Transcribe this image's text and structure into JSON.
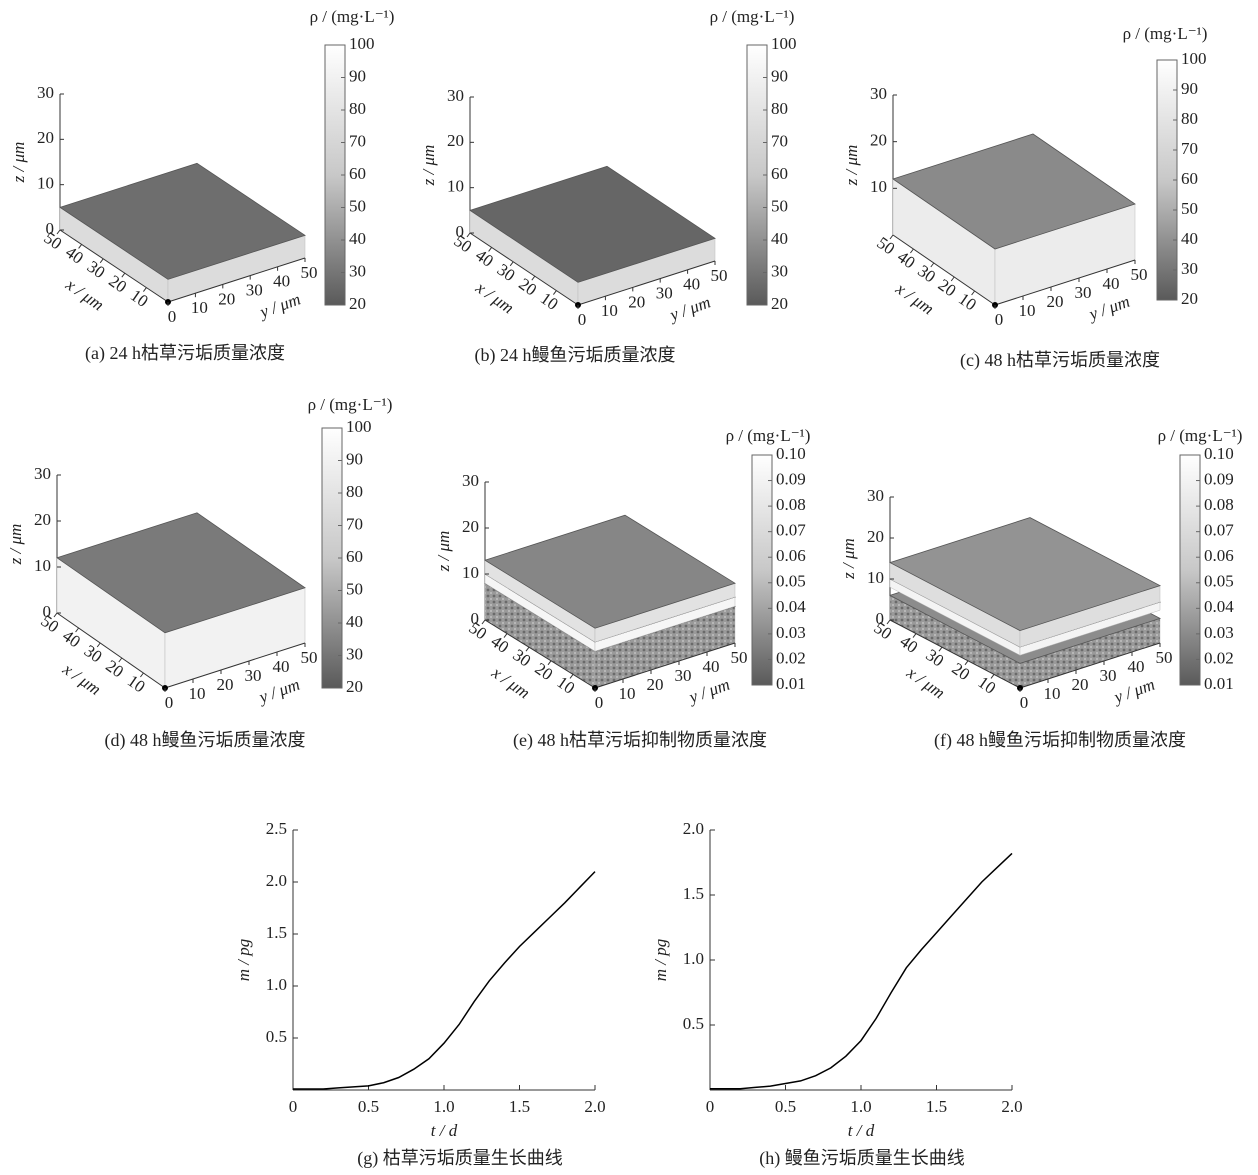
{
  "chart_data": [
    {
      "type": "surface3d",
      "title": "(a) 24 h枯草污垢质量浓度",
      "xlabel": "x / μm",
      "ylabel": "y / μm",
      "zlabel": "z / μm",
      "colorbar_label": "ρ / (mg·L⁻¹)",
      "xlim": [
        0,
        50
      ],
      "ylim": [
        0,
        50
      ],
      "zlim": [
        0,
        30
      ],
      "xticks": [
        10,
        20,
        30,
        40,
        50
      ],
      "yticks": [
        0,
        10,
        20,
        30,
        40,
        50
      ],
      "zticks": [
        0,
        10,
        20,
        30
      ],
      "clim": [
        20,
        100
      ],
      "colorbar_ticks": [
        20,
        30,
        40,
        50,
        60,
        70,
        80,
        90,
        100
      ]
    },
    {
      "type": "surface3d",
      "title": "(b) 24 h鳗鱼污垢质量浓度",
      "xlabel": "x / μm",
      "ylabel": "y / μm",
      "zlabel": "z / μm",
      "colorbar_label": "ρ / (mg·L⁻¹)",
      "xlim": [
        0,
        50
      ],
      "ylim": [
        0,
        50
      ],
      "zlim": [
        0,
        30
      ],
      "xticks": [
        10,
        20,
        30,
        40,
        50
      ],
      "yticks": [
        0,
        10,
        20,
        30,
        40,
        50
      ],
      "zticks": [
        0,
        10,
        20,
        30
      ],
      "clim": [
        20,
        100
      ],
      "colorbar_ticks": [
        20,
        30,
        40,
        50,
        60,
        70,
        80,
        90,
        100
      ]
    },
    {
      "type": "surface3d",
      "title": "(c) 48 h枯草污垢质量浓度",
      "xlabel": "x / μm",
      "ylabel": "y / μm",
      "zlabel": "z / μm",
      "colorbar_label": "ρ / (mg·L⁻¹)",
      "xlim": [
        0,
        50
      ],
      "ylim": [
        0,
        50
      ],
      "zlim": [
        0,
        30
      ],
      "xticks": [
        10,
        20,
        30,
        40,
        50
      ],
      "yticks": [
        0,
        10,
        20,
        30,
        40,
        50
      ],
      "zticks": [
        10,
        20,
        30
      ],
      "clim": [
        20,
        100
      ],
      "colorbar_ticks": [
        20,
        30,
        40,
        50,
        60,
        70,
        80,
        90,
        100
      ]
    },
    {
      "type": "surface3d",
      "title": "(d) 48 h鳗鱼污垢质量浓度",
      "xlabel": "x / μm",
      "ylabel": "y / μm",
      "zlabel": "z / μm",
      "colorbar_label": "ρ / (mg·L⁻¹)",
      "xlim": [
        0,
        50
      ],
      "ylim": [
        0,
        50
      ],
      "zlim": [
        0,
        30
      ],
      "xticks": [
        10,
        20,
        30,
        40,
        50
      ],
      "yticks": [
        0,
        10,
        20,
        30,
        40,
        50
      ],
      "zticks": [
        0,
        10,
        20,
        30
      ],
      "clim": [
        20,
        100
      ],
      "colorbar_ticks": [
        20,
        30,
        40,
        50,
        60,
        70,
        80,
        90,
        100
      ]
    },
    {
      "type": "surface3d",
      "title": "(e) 48 h枯草污垢抑制物质量浓度",
      "xlabel": "x / μm",
      "ylabel": "y / μm",
      "zlabel": "z / μm",
      "colorbar_label": "ρ / (mg·L⁻¹)",
      "xlim": [
        0,
        50
      ],
      "ylim": [
        0,
        50
      ],
      "zlim": [
        0,
        30
      ],
      "xticks": [
        10,
        20,
        30,
        40,
        50
      ],
      "yticks": [
        0,
        10,
        20,
        30,
        40,
        50
      ],
      "zticks": [
        0,
        10,
        20,
        30
      ],
      "clim": [
        0.01,
        0.1
      ],
      "colorbar_ticks": [
        0.01,
        0.02,
        0.03,
        0.04,
        0.05,
        0.06,
        0.07,
        0.08,
        0.09,
        {
          "value": 0.1,
          "label": "0.10"
        }
      ]
    },
    {
      "type": "surface3d",
      "title": "(f) 48 h鳗鱼污垢抑制物质量浓度",
      "xlabel": "x / μm",
      "ylabel": "y / μm",
      "zlabel": "z / μm",
      "colorbar_label": "ρ / (mg·L⁻¹)",
      "xlim": [
        0,
        50
      ],
      "ylim": [
        0,
        50
      ],
      "zlim": [
        0,
        30
      ],
      "xticks": [
        10,
        20,
        30,
        40,
        50
      ],
      "yticks": [
        0,
        10,
        20,
        30,
        40,
        50
      ],
      "zticks": [
        0,
        10,
        20,
        30
      ],
      "clim": [
        0.01,
        0.1
      ],
      "colorbar_ticks": [
        0.01,
        0.02,
        0.03,
        0.04,
        0.05,
        0.06,
        0.07,
        0.08,
        0.09,
        {
          "value": 0.1,
          "label": "0.10"
        }
      ]
    },
    {
      "type": "line",
      "title": "(g) 枯草污垢质量生长曲线",
      "xlabel": "t / d",
      "ylabel": "m / pg",
      "color": "#000000",
      "x": [
        0,
        0.1,
        0.2,
        0.3,
        0.4,
        0.5,
        0.6,
        0.7,
        0.8,
        0.9,
        1,
        1.1,
        1.2,
        1.3,
        1.4,
        1.5,
        1.6,
        1.7,
        1.8,
        1.9,
        2
      ],
      "values": [
        0.01,
        0.01,
        0.01,
        0.02,
        0.03,
        0.04,
        0.07,
        0.12,
        0.2,
        0.3,
        0.45,
        0.63,
        0.85,
        1.05,
        1.22,
        1.38,
        1.52,
        1.66,
        1.8,
        1.95,
        2.1
      ],
      "xlim": [
        0,
        2
      ],
      "ylim": [
        0,
        2.5
      ],
      "xticks": [
        0,
        0.5,
        {
          "value": 1,
          "label": "1.0"
        },
        1.5,
        {
          "value": 2,
          "label": "2.0"
        }
      ],
      "yticks": [
        0.5,
        {
          "value": 1,
          "label": "1.0"
        },
        1.5,
        {
          "value": 2,
          "label": "2.0"
        },
        2.5
      ]
    },
    {
      "type": "line",
      "title": "(h) 鳗鱼污垢质量生长曲线",
      "xlabel": "t / d",
      "ylabel": "m / pg",
      "color": "#000000",
      "x": [
        0,
        0.1,
        0.2,
        0.3,
        0.4,
        0.5,
        0.6,
        0.7,
        0.8,
        0.9,
        1,
        1.1,
        1.2,
        1.3,
        1.4,
        1.5,
        1.6,
        1.7,
        1.8,
        1.9,
        2
      ],
      "values": [
        0.01,
        0.01,
        0.01,
        0.02,
        0.03,
        0.05,
        0.07,
        0.11,
        0.17,
        0.26,
        0.38,
        0.55,
        0.75,
        0.94,
        1.08,
        1.21,
        1.34,
        1.47,
        1.6,
        1.71,
        1.82
      ],
      "xlim": [
        0,
        2
      ],
      "ylim": [
        0,
        2
      ],
      "xticks": [
        0,
        0.5,
        {
          "value": 1,
          "label": "1.0"
        },
        1.5,
        {
          "value": 2,
          "label": "2.0"
        }
      ],
      "yticks": [
        0.5,
        {
          "value": 1,
          "label": "1.0"
        },
        1.5,
        {
          "value": 2,
          "label": "2.0"
        }
      ]
    }
  ]
}
